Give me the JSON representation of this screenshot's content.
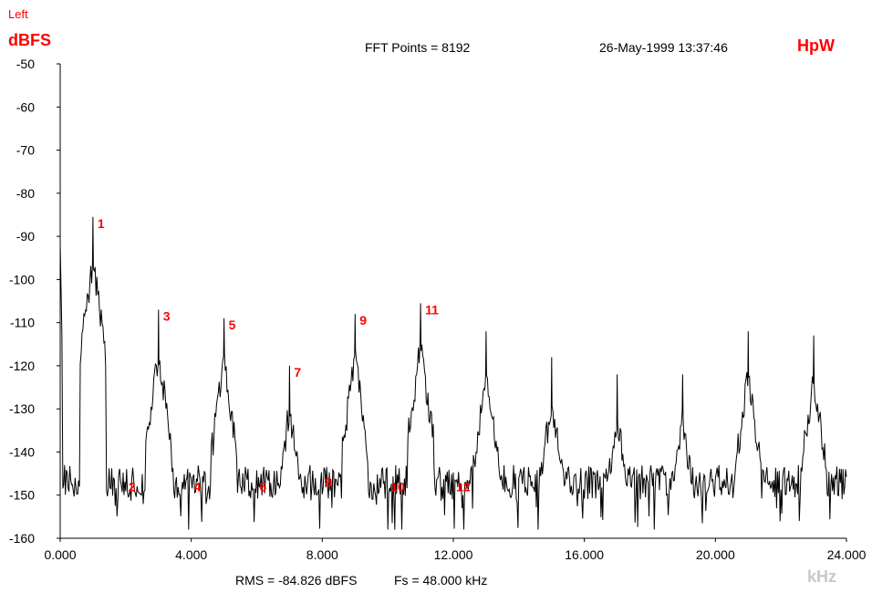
{
  "header": {
    "channel": "Left",
    "unit": "dBFS",
    "fft_points": "FFT Points = 8192",
    "datetime": "26-May-1999 13:37:46",
    "brand": "HpW"
  },
  "footer": {
    "rms": "RMS = -84.826 dBFS",
    "fs": "Fs = 48.000 kHz",
    "xunit": "kHz"
  },
  "chart_data": {
    "type": "line",
    "xlabel": "kHz",
    "ylabel": "dBFS",
    "xlim": [
      0,
      24
    ],
    "ylim": [
      -160,
      -50
    ],
    "xticks": [
      "0.000",
      "4.000",
      "8.000",
      "12.000",
      "16.000",
      "20.000",
      "24.000"
    ],
    "yticks": [
      "-50",
      "-60",
      "-70",
      "-80",
      "-90",
      "-100",
      "-110",
      "-120",
      "-130",
      "-140",
      "-150",
      "-160"
    ],
    "grid": false,
    "noise_floor_db": -147,
    "dc_level_db": -92,
    "peaks": [
      {
        "freq_khz": 1.0,
        "level_db": -85.5,
        "label": "1"
      },
      {
        "freq_khz": 3.0,
        "level_db": -107,
        "label": "3"
      },
      {
        "freq_khz": 5.0,
        "level_db": -109,
        "label": "5"
      },
      {
        "freq_khz": 7.0,
        "level_db": -120,
        "label": "7"
      },
      {
        "freq_khz": 9.0,
        "level_db": -108,
        "label": "9"
      },
      {
        "freq_khz": 11.0,
        "level_db": -105.5,
        "label": "11"
      },
      {
        "freq_khz": 13.0,
        "level_db": -112,
        "label": ""
      },
      {
        "freq_khz": 15.0,
        "level_db": -118,
        "label": ""
      },
      {
        "freq_khz": 17.0,
        "level_db": -122,
        "label": ""
      },
      {
        "freq_khz": 19.0,
        "level_db": -122,
        "label": ""
      },
      {
        "freq_khz": 21.0,
        "level_db": -112,
        "label": ""
      },
      {
        "freq_khz": 23.0,
        "level_db": -113,
        "label": ""
      }
    ],
    "even_labels": [
      {
        "freq_khz": 2.0,
        "level_db": -148,
        "label": "2"
      },
      {
        "freq_khz": 4.0,
        "level_db": -148,
        "label": "4"
      },
      {
        "freq_khz": 6.0,
        "level_db": -148,
        "label": "6"
      },
      {
        "freq_khz": 8.0,
        "level_db": -147,
        "label": "8"
      },
      {
        "freq_khz": 10.0,
        "level_db": -148,
        "label": "10"
      },
      {
        "freq_khz": 12.0,
        "level_db": -148,
        "label": "12"
      }
    ],
    "series_color": "#000000",
    "label_color": "#ff0000"
  }
}
